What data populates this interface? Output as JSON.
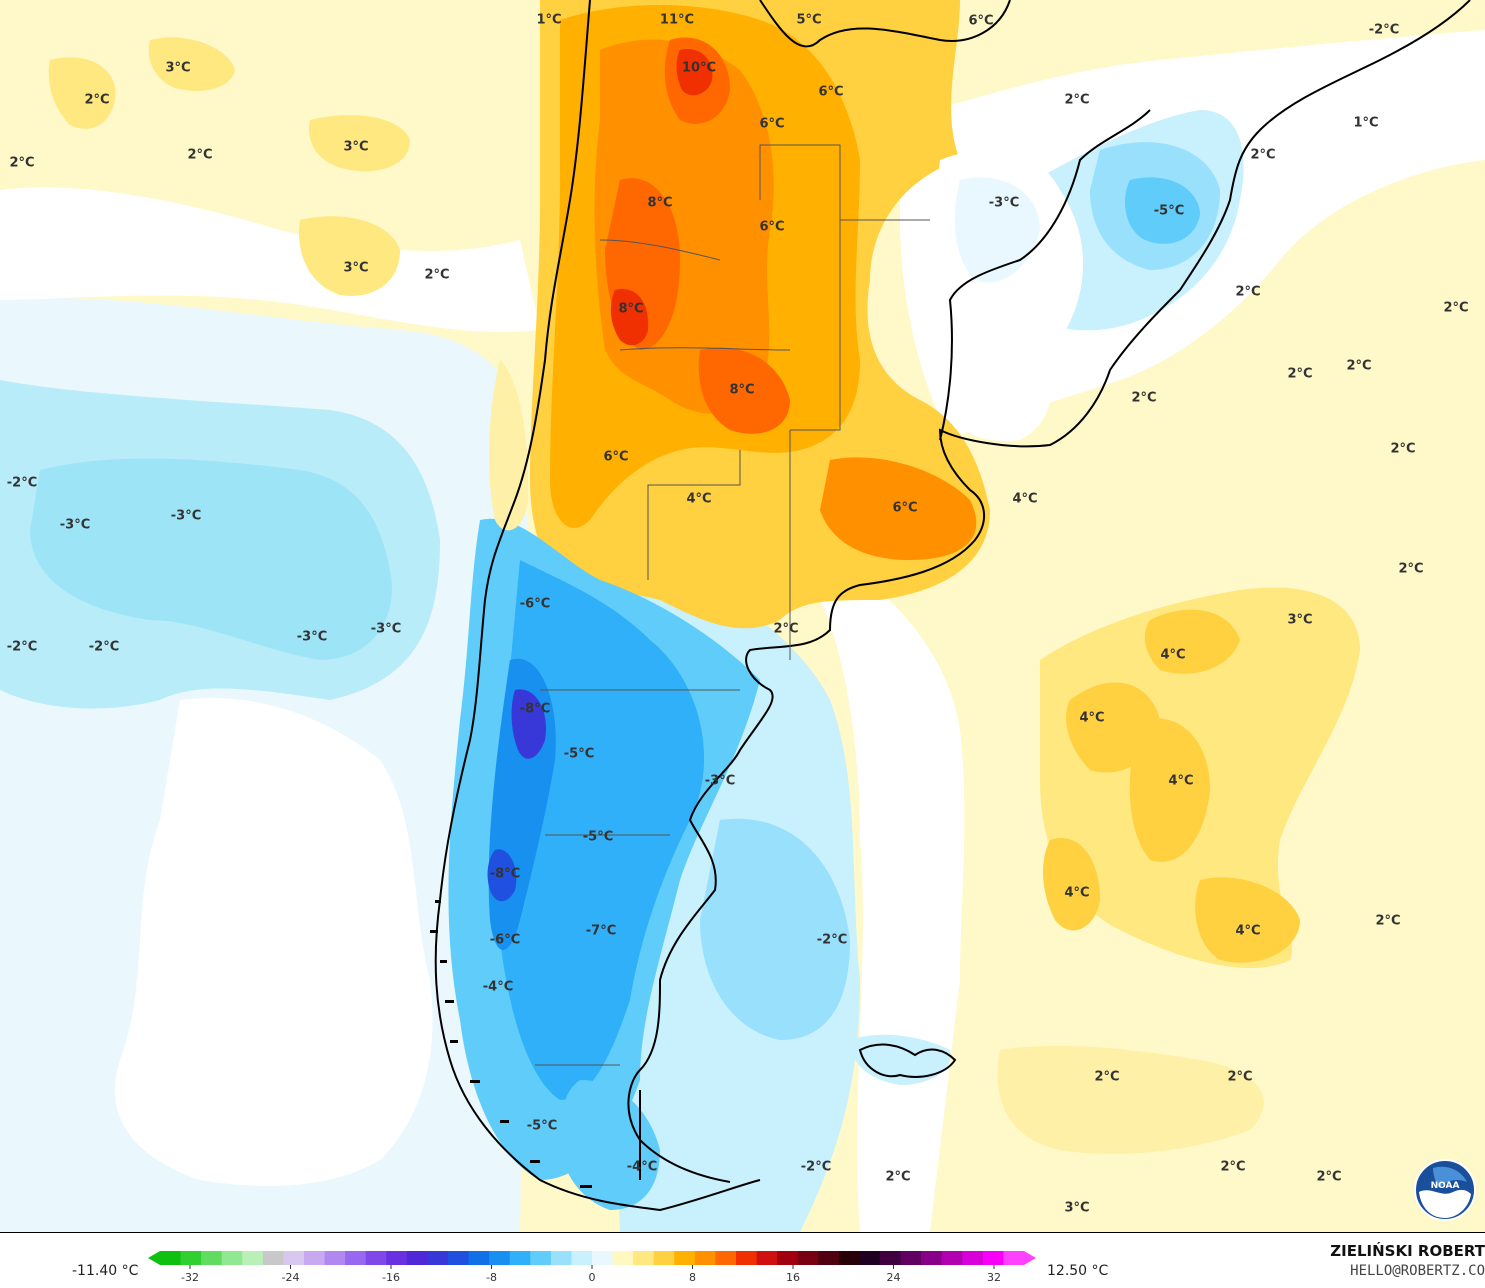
{
  "map": {
    "region": "South America",
    "labels": [
      {
        "text": "1°C",
        "pos": [
          549,
          20
        ]
      },
      {
        "text": "11°C",
        "pos": [
          677,
          20
        ]
      },
      {
        "text": "5°C",
        "pos": [
          809,
          20
        ]
      },
      {
        "text": "6°C",
        "pos": [
          981,
          21
        ]
      },
      {
        "text": "-2°C",
        "pos": [
          1384,
          30
        ]
      },
      {
        "text": "3°C",
        "pos": [
          178,
          68
        ]
      },
      {
        "text": "10°C",
        "pos": [
          699,
          68
        ]
      },
      {
        "text": "2°C",
        "pos": [
          97,
          100
        ]
      },
      {
        "text": "6°C",
        "pos": [
          831,
          92
        ]
      },
      {
        "text": "2°C",
        "pos": [
          1077,
          100
        ]
      },
      {
        "text": "1°C",
        "pos": [
          1366,
          123
        ]
      },
      {
        "text": "6°C",
        "pos": [
          772,
          124
        ]
      },
      {
        "text": "3°C",
        "pos": [
          356,
          147
        ]
      },
      {
        "text": "2°C",
        "pos": [
          200,
          155
        ]
      },
      {
        "text": "2°C",
        "pos": [
          1263,
          155
        ]
      },
      {
        "text": "2°C",
        "pos": [
          22,
          163
        ]
      },
      {
        "text": "8°C",
        "pos": [
          660,
          203
        ]
      },
      {
        "text": "-3°C",
        "pos": [
          1004,
          203
        ]
      },
      {
        "text": "-5°C",
        "pos": [
          1169,
          211
        ]
      },
      {
        "text": "6°C",
        "pos": [
          772,
          227
        ]
      },
      {
        "text": "3°C",
        "pos": [
          356,
          268
        ]
      },
      {
        "text": "2°C",
        "pos": [
          437,
          275
        ]
      },
      {
        "text": "2°C",
        "pos": [
          1248,
          292
        ]
      },
      {
        "text": "8°C",
        "pos": [
          631,
          309
        ]
      },
      {
        "text": "2°C",
        "pos": [
          1456,
          308
        ]
      },
      {
        "text": "2°C",
        "pos": [
          1359,
          366
        ]
      },
      {
        "text": "2°C",
        "pos": [
          1300,
          374
        ]
      },
      {
        "text": "8°C",
        "pos": [
          742,
          390
        ]
      },
      {
        "text": "2°C",
        "pos": [
          1144,
          398
        ]
      },
      {
        "text": "2°C",
        "pos": [
          1403,
          449
        ]
      },
      {
        "text": "6°C",
        "pos": [
          616,
          457
        ]
      },
      {
        "text": "-2°C",
        "pos": [
          22,
          483
        ]
      },
      {
        "text": "4°C",
        "pos": [
          699,
          499
        ]
      },
      {
        "text": "4°C",
        "pos": [
          1025,
          499
        ]
      },
      {
        "text": "6°C",
        "pos": [
          905,
          508
        ]
      },
      {
        "text": "-3°C",
        "pos": [
          186,
          516
        ]
      },
      {
        "text": "-3°C",
        "pos": [
          75,
          525
        ]
      },
      {
        "text": "2°C",
        "pos": [
          1411,
          569
        ]
      },
      {
        "text": "-6°C",
        "pos": [
          535,
          604
        ]
      },
      {
        "text": "3°C",
        "pos": [
          1300,
          620
        ]
      },
      {
        "text": "-3°C",
        "pos": [
          386,
          629
        ]
      },
      {
        "text": "2°C",
        "pos": [
          786,
          629
        ]
      },
      {
        "text": "-3°C",
        "pos": [
          312,
          637
        ]
      },
      {
        "text": "-2°C",
        "pos": [
          22,
          647
        ]
      },
      {
        "text": "-2°C",
        "pos": [
          104,
          647
        ]
      },
      {
        "text": "4°C",
        "pos": [
          1173,
          655
        ]
      },
      {
        "text": "-8°C",
        "pos": [
          535,
          709
        ]
      },
      {
        "text": "4°C",
        "pos": [
          1092,
          718
        ]
      },
      {
        "text": "-5°C",
        "pos": [
          579,
          754
        ]
      },
      {
        "text": "-3°C",
        "pos": [
          720,
          781
        ]
      },
      {
        "text": "4°C",
        "pos": [
          1181,
          781
        ]
      },
      {
        "text": "-5°C",
        "pos": [
          598,
          837
        ]
      },
      {
        "text": "-8°C",
        "pos": [
          505,
          874
        ]
      },
      {
        "text": "4°C",
        "pos": [
          1077,
          893
        ]
      },
      {
        "text": "2°C",
        "pos": [
          1388,
          921
        ]
      },
      {
        "text": "-7°C",
        "pos": [
          601,
          931
        ]
      },
      {
        "text": "4°C",
        "pos": [
          1248,
          931
        ]
      },
      {
        "text": "-6°C",
        "pos": [
          505,
          940
        ]
      },
      {
        "text": "-2°C",
        "pos": [
          832,
          940
        ]
      },
      {
        "text": "-4°C",
        "pos": [
          498,
          987
        ]
      },
      {
        "text": "2°C",
        "pos": [
          1107,
          1077
        ]
      },
      {
        "text": "2°C",
        "pos": [
          1240,
          1077
        ]
      },
      {
        "text": "-5°C",
        "pos": [
          542,
          1126
        ]
      },
      {
        "text": "-4°C",
        "pos": [
          642,
          1167
        ]
      },
      {
        "text": "-2°C",
        "pos": [
          816,
          1167
        ]
      },
      {
        "text": "2°C",
        "pos": [
          1233,
          1167
        ]
      },
      {
        "text": "2°C",
        "pos": [
          898,
          1177
        ]
      },
      {
        "text": "2°C",
        "pos": [
          1329,
          1177
        ]
      },
      {
        "text": "3°C",
        "pos": [
          1077,
          1208
        ]
      }
    ]
  },
  "legend": {
    "min_label": "-11.40 °C",
    "max_label": "12.50 °C",
    "ticks": [
      "-32",
      "-24",
      "-16",
      "-8",
      "0",
      "8",
      "16",
      "24",
      "32"
    ],
    "colors": [
      "#10c010",
      "#30d030",
      "#60dc60",
      "#90e890",
      "#b8f0b8",
      "#c8c8c8",
      "#d8c8f0",
      "#c8a8f0",
      "#b088f0",
      "#9868f0",
      "#8048e8",
      "#6830e0",
      "#5028d8",
      "#3838d8",
      "#2050e0",
      "#1070e8",
      "#1890f0",
      "#30b0f8",
      "#60ccfa",
      "#98e0fc",
      "#c8f0fd",
      "#e8f8fe",
      "#fff8c0",
      "#ffe880",
      "#ffd040",
      "#ffb000",
      "#ff9000",
      "#ff6800",
      "#f03000",
      "#d01010",
      "#a00010",
      "#780010",
      "#500010",
      "#280008",
      "#200020",
      "#400040",
      "#600060",
      "#880088",
      "#b000b0",
      "#d800d8",
      "#f800f8",
      "#ff40ff"
    ]
  },
  "author": {
    "name": "ZIELIŃSKI ROBERT",
    "email": "HELLO@ROBERTZ.CO"
  },
  "logo": {
    "name": "NOAA",
    "text": "NOAA"
  }
}
